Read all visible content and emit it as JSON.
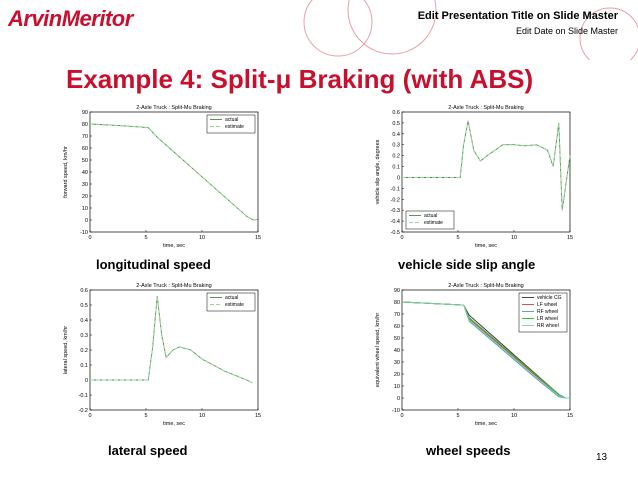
{
  "header": {
    "logo": "ArvinMeritor",
    "presentation_title": "Edit Presentation Title on Slide Master",
    "date": "Edit Date on Slide Master"
  },
  "slide": {
    "title": "Example 4: Split-μ Braking (with ABS)",
    "page_number": "13"
  },
  "captions": {
    "long": "longitudinal speed",
    "slip": "vehicle side slip angle",
    "lat": "lateral speed",
    "wheel": "wheel speeds"
  },
  "colors": {
    "brand": "#c8102e",
    "actual": "#4a8a4a",
    "estimate": "#98d898"
  },
  "chart_data": [
    {
      "type": "line",
      "title": "2-Axle Truck : Split-Mu Braking",
      "xlabel": "time, sec",
      "ylabel": "forward speed, km/hr",
      "xlim": [
        0,
        15
      ],
      "ylim": [
        -10,
        90
      ],
      "xticks": [
        0,
        5,
        10,
        15
      ],
      "yticks": [
        -10,
        0,
        10,
        20,
        30,
        40,
        50,
        60,
        70,
        80,
        90
      ],
      "legend": "top-right",
      "series": [
        {
          "name": "actual",
          "x": [
            0,
            3,
            5.2,
            6,
            8,
            10,
            12,
            14,
            14.6,
            15
          ],
          "y": [
            80,
            78.5,
            77,
            69,
            52.5,
            36,
            19.5,
            3,
            0,
            0.5
          ]
        },
        {
          "name": "estimate",
          "x": [
            0,
            3,
            5.2,
            6,
            8,
            10,
            12,
            14,
            14.6,
            15
          ],
          "y": [
            80,
            78.5,
            77,
            69,
            52.5,
            36,
            19.5,
            3,
            0,
            0.5
          ]
        }
      ]
    },
    {
      "type": "line",
      "title": "2-Axle Truck : Split-Mu Braking",
      "xlabel": "time, sec",
      "ylabel": "vehicle slip angle, degrees",
      "xlim": [
        0,
        15
      ],
      "ylim": [
        -0.5,
        0.6
      ],
      "xticks": [
        0,
        5,
        10,
        15
      ],
      "yticks": [
        -0.5,
        -0.4,
        -0.3,
        -0.2,
        -0.1,
        0,
        0.1,
        0.2,
        0.3,
        0.4,
        0.5,
        0.6
      ],
      "legend": "bottom-left",
      "series": [
        {
          "name": "actual",
          "x": [
            0,
            5.2,
            5.5,
            5.9,
            6.4,
            7,
            7.6,
            8.3,
            9,
            10,
            11,
            12,
            13,
            13.5,
            14,
            14.3,
            15
          ],
          "y": [
            0,
            0,
            0.3,
            0.52,
            0.25,
            0.15,
            0.2,
            0.25,
            0.3,
            0.3,
            0.29,
            0.3,
            0.25,
            0.1,
            0.5,
            -0.3,
            0.2
          ]
        },
        {
          "name": "estimate",
          "x": [
            0,
            5.2,
            5.5,
            5.9,
            6.4,
            7,
            7.6,
            8.3,
            9,
            10,
            11,
            12,
            13,
            13.5,
            14,
            14.3,
            15
          ],
          "y": [
            0,
            0,
            0.3,
            0.52,
            0.25,
            0.15,
            0.2,
            0.25,
            0.3,
            0.3,
            0.29,
            0.3,
            0.25,
            0.1,
            0.5,
            -0.3,
            0.2
          ]
        }
      ]
    },
    {
      "type": "line",
      "title": "2-Axle Truck : Split-Mu Braking",
      "xlabel": "time, sec",
      "ylabel": "lateral speed, km/hr",
      "xlim": [
        0,
        15
      ],
      "ylim": [
        -0.2,
        0.6
      ],
      "xticks": [
        0,
        5,
        10,
        15
      ],
      "yticks": [
        -0.2,
        -0.1,
        0,
        0.1,
        0.2,
        0.3,
        0.4,
        0.5,
        0.6
      ],
      "legend": "top-right",
      "series": [
        {
          "name": "actual",
          "x": [
            0,
            5.2,
            5.6,
            6,
            6.4,
            6.8,
            7.4,
            8,
            9,
            10,
            11,
            12,
            13,
            14,
            14.5
          ],
          "y": [
            0,
            0,
            0.22,
            0.56,
            0.3,
            0.15,
            0.2,
            0.22,
            0.2,
            0.14,
            0.1,
            0.06,
            0.03,
            0,
            -0.02
          ]
        },
        {
          "name": "estimate",
          "x": [
            0,
            5.2,
            5.6,
            6,
            6.4,
            6.8,
            7.4,
            8,
            9,
            10,
            11,
            12,
            13,
            14,
            14.5
          ],
          "y": [
            0,
            0,
            0.22,
            0.56,
            0.3,
            0.15,
            0.2,
            0.22,
            0.2,
            0.14,
            0.1,
            0.06,
            0.03,
            0,
            -0.02
          ]
        }
      ]
    },
    {
      "type": "line",
      "title": "2-Axle Truck : Split-Mu Braking",
      "xlabel": "time, sec",
      "ylabel": "equivalent wheel speed, km/hr",
      "xlim": [
        0,
        15
      ],
      "ylim": [
        -10,
        90
      ],
      "xticks": [
        0,
        5,
        10,
        15
      ],
      "yticks": [
        -10,
        0,
        10,
        20,
        30,
        40,
        50,
        60,
        70,
        80,
        90
      ],
      "legend": "top-right",
      "series": [
        {
          "name": "vehicle CG",
          "x": [
            0,
            5.5,
            6,
            8,
            10,
            12,
            14,
            14.6,
            15
          ],
          "y": [
            80,
            77.5,
            69,
            52.5,
            36,
            19.5,
            3,
            0,
            0
          ]
        },
        {
          "name": "LF wheel",
          "x": [
            0,
            5.5,
            6,
            8,
            10,
            12,
            14,
            14.6,
            15
          ],
          "y": [
            80,
            77.5,
            66,
            50,
            34,
            18,
            2,
            0,
            0
          ]
        },
        {
          "name": "RF wheel",
          "x": [
            0,
            5.5,
            6,
            8,
            10,
            12,
            14,
            14.6,
            15
          ],
          "y": [
            80,
            77.5,
            64,
            48,
            32,
            16,
            1,
            0,
            0
          ]
        },
        {
          "name": "LR wheel",
          "x": [
            0,
            5.5,
            6,
            8,
            10,
            12,
            14,
            14.6,
            15
          ],
          "y": [
            80,
            77.5,
            67,
            51,
            35,
            19,
            3,
            0,
            0
          ]
        },
        {
          "name": "RR wheel",
          "x": [
            0,
            5.5,
            6,
            8,
            10,
            12,
            14,
            14.6,
            15
          ],
          "y": [
            80,
            77.5,
            65,
            49,
            33,
            17,
            2,
            0,
            0
          ]
        }
      ]
    }
  ]
}
